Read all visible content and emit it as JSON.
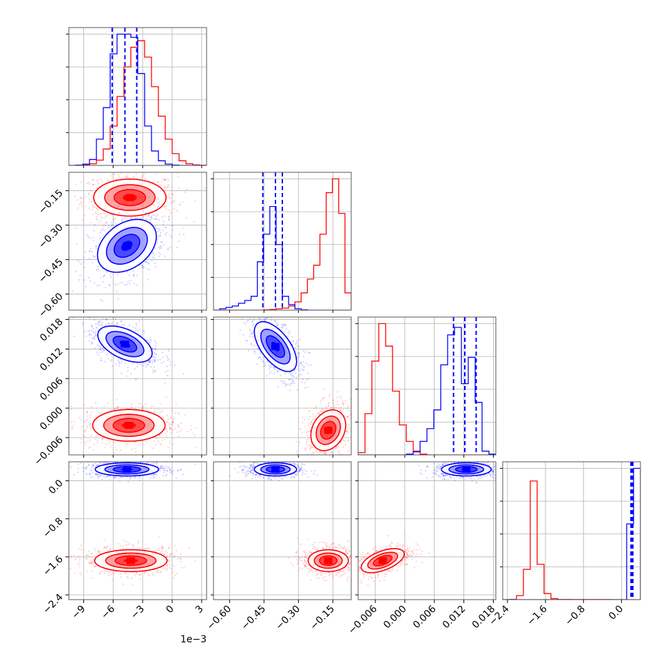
{
  "colors": {
    "series_a": "#ff0000",
    "series_b": "#0000ff",
    "grid": "#b0b0b0",
    "frame": "#555555"
  },
  "chart_data": {
    "type": "corner",
    "grid": true,
    "series": [
      {
        "name": "",
        "color": "#ff0000",
        "quantiles_shown": false
      },
      {
        "name": "",
        "color": "#0000ff",
        "quantiles_shown": true
      }
    ],
    "params": [
      {
        "range": [
          -0.0105,
          0.0035
        ],
        "ticks": [
          -0.009,
          -0.006,
          -0.003,
          0.0,
          0.003
        ],
        "tick_labels": [
          "−9",
          "−6",
          "−3",
          "0",
          "3"
        ],
        "offset_label": "1e−3",
        "blue_quantiles": [
          -0.0061,
          -0.0048,
          -0.0036
        ]
      },
      {
        "range": [
          -0.67,
          -0.07
        ],
        "ticks": [
          -0.6,
          -0.45,
          -0.3,
          -0.15
        ],
        "tick_labels": [
          "−0.60",
          "−0.45",
          "−0.30",
          "−0.15"
        ],
        "blue_quantiles": [
          -0.455,
          -0.4,
          -0.37
        ]
      },
      {
        "range": [
          -0.0095,
          0.0185
        ],
        "ticks": [
          -0.006,
          0.0,
          0.006,
          0.012,
          0.018
        ],
        "tick_labels": [
          "−0.006",
          "0.000",
          "0.006",
          "0.012",
          "0.018"
        ],
        "blue_quantiles": [
          0.0099,
          0.0122,
          0.0145
        ]
      },
      {
        "range": [
          -2.5,
          0.4
        ],
        "ticks": [
          -2.4,
          -1.6,
          -0.8,
          0.0
        ],
        "tick_labels": [
          "−2.4",
          "−1.6",
          "−0.8",
          "0.0"
        ],
        "blue_quantiles": [
          0.2,
          0.22,
          0.24
        ]
      }
    ],
    "histograms": [
      {
        "param": 0,
        "red": {
          "edges": [
            -0.0105,
            0.0035
          ],
          "counts": [
            0,
            0.3,
            0.8,
            2.5,
            8,
            25,
            60,
            105,
            150,
            180,
            190,
            165,
            120,
            75,
            40,
            18,
            7,
            2.5,
            0.8,
            0.2
          ]
        },
        "blue": {
          "edges": [
            -0.0105,
            0.0035
          ],
          "counts": [
            0,
            0.5,
            2,
            9,
            40,
            88,
            170,
            200,
            200,
            195,
            140,
            60,
            22,
            7,
            2,
            0.5,
            0,
            0,
            0,
            0
          ]
        }
      },
      {
        "param": 1,
        "red": {
          "edges": [
            -0.67,
            -0.07
          ],
          "counts": [
            0,
            0,
            0,
            0,
            0,
            0,
            0,
            0,
            0.5,
            1,
            2,
            3,
            6,
            12,
            25,
            45,
            65,
            110,
            170,
            190,
            140,
            25
          ]
        },
        "blue": {
          "edges": [
            -0.67,
            -0.07
          ],
          "counts": [
            0,
            2,
            4,
            6,
            10,
            14,
            20,
            70,
            110,
            150,
            95,
            20,
            8,
            2,
            0.5,
            0,
            0,
            0,
            0,
            0,
            0,
            0
          ]
        }
      },
      {
        "param": 2,
        "red": {
          "edges": [
            -0.0095,
            0.0185
          ],
          "counts": [
            3,
            55,
            125,
            175,
            145,
            85,
            40,
            18,
            5,
            1,
            0,
            0,
            0,
            0,
            0,
            0,
            0,
            0,
            0,
            0
          ]
        },
        "blue": {
          "edges": [
            -0.0095,
            0.0185
          ],
          "counts": [
            0,
            0,
            0,
            0,
            0,
            0,
            0,
            1,
            4,
            18,
            35,
            60,
            120,
            160,
            170,
            95,
            130,
            70,
            5,
            1
          ]
        }
      },
      {
        "param": 3,
        "red": {
          "edges": [
            -2.5,
            0.4
          ],
          "counts": [
            0,
            0.5,
            8,
            60,
            235,
            70,
            12,
            2,
            0.3,
            0.3,
            0.2,
            0.2,
            0.2,
            0.2,
            0.2,
            0.2,
            0,
            0,
            0,
            0
          ]
        },
        "blue": {
          "edges": [
            -2.5,
            0.4
          ],
          "counts": [
            0,
            0,
            0,
            0,
            0,
            0,
            0,
            0,
            0,
            0,
            0,
            0,
            0,
            0,
            0,
            0,
            0,
            0,
            150,
            260
          ]
        }
      }
    ],
    "pairs": [
      {
        "x": 0,
        "y": 1,
        "red": {
          "center": [
            -0.0043,
            -0.18
          ],
          "sigma": [
            0.0016,
            0.035
          ],
          "rho": 0.0
        },
        "blue": {
          "center": [
            -0.0046,
            -0.39
          ],
          "sigma": [
            0.0013,
            0.05
          ],
          "rho": 0.35
        }
      },
      {
        "x": 0,
        "y": 2,
        "red": {
          "center": [
            -0.0044,
            -0.0035
          ],
          "sigma": [
            0.0016,
            0.0014
          ],
          "rho": 0.0
        },
        "blue": {
          "center": [
            -0.0048,
            0.013
          ],
          "sigma": [
            0.0012,
            0.0016
          ],
          "rho": -0.5
        }
      },
      {
        "x": 1,
        "y": 2,
        "red": {
          "center": [
            -0.17,
            -0.0045
          ],
          "sigma": [
            0.033,
            0.0018
          ],
          "rho": 0.25
        },
        "blue": {
          "center": [
            -0.4,
            0.0125
          ],
          "sigma": [
            0.04,
            0.0022
          ],
          "rho": -0.6
        }
      },
      {
        "x": 0,
        "y": 3,
        "red": {
          "center": [
            -0.0042,
            -1.68
          ],
          "sigma": [
            0.0016,
            0.1
          ],
          "rho": 0.0
        },
        "blue": {
          "center": [
            -0.0046,
            0.24
          ],
          "sigma": [
            0.0014,
            0.06
          ],
          "rho": 0.0
        }
      },
      {
        "x": 1,
        "y": 3,
        "red": {
          "center": [
            -0.17,
            -1.68
          ],
          "sigma": [
            0.038,
            0.1
          ],
          "rho": 0.0
        },
        "blue": {
          "center": [
            -0.4,
            0.24
          ],
          "sigma": [
            0.04,
            0.06
          ],
          "rho": 0.0
        }
      },
      {
        "x": 2,
        "y": 3,
        "red": {
          "center": [
            -0.0045,
            -1.68
          ],
          "sigma": [
            0.0019,
            0.11
          ],
          "rho": 0.55
        },
        "blue": {
          "center": [
            0.0125,
            0.24
          ],
          "sigma": [
            0.0022,
            0.06
          ],
          "rho": 0.0
        }
      }
    ]
  }
}
